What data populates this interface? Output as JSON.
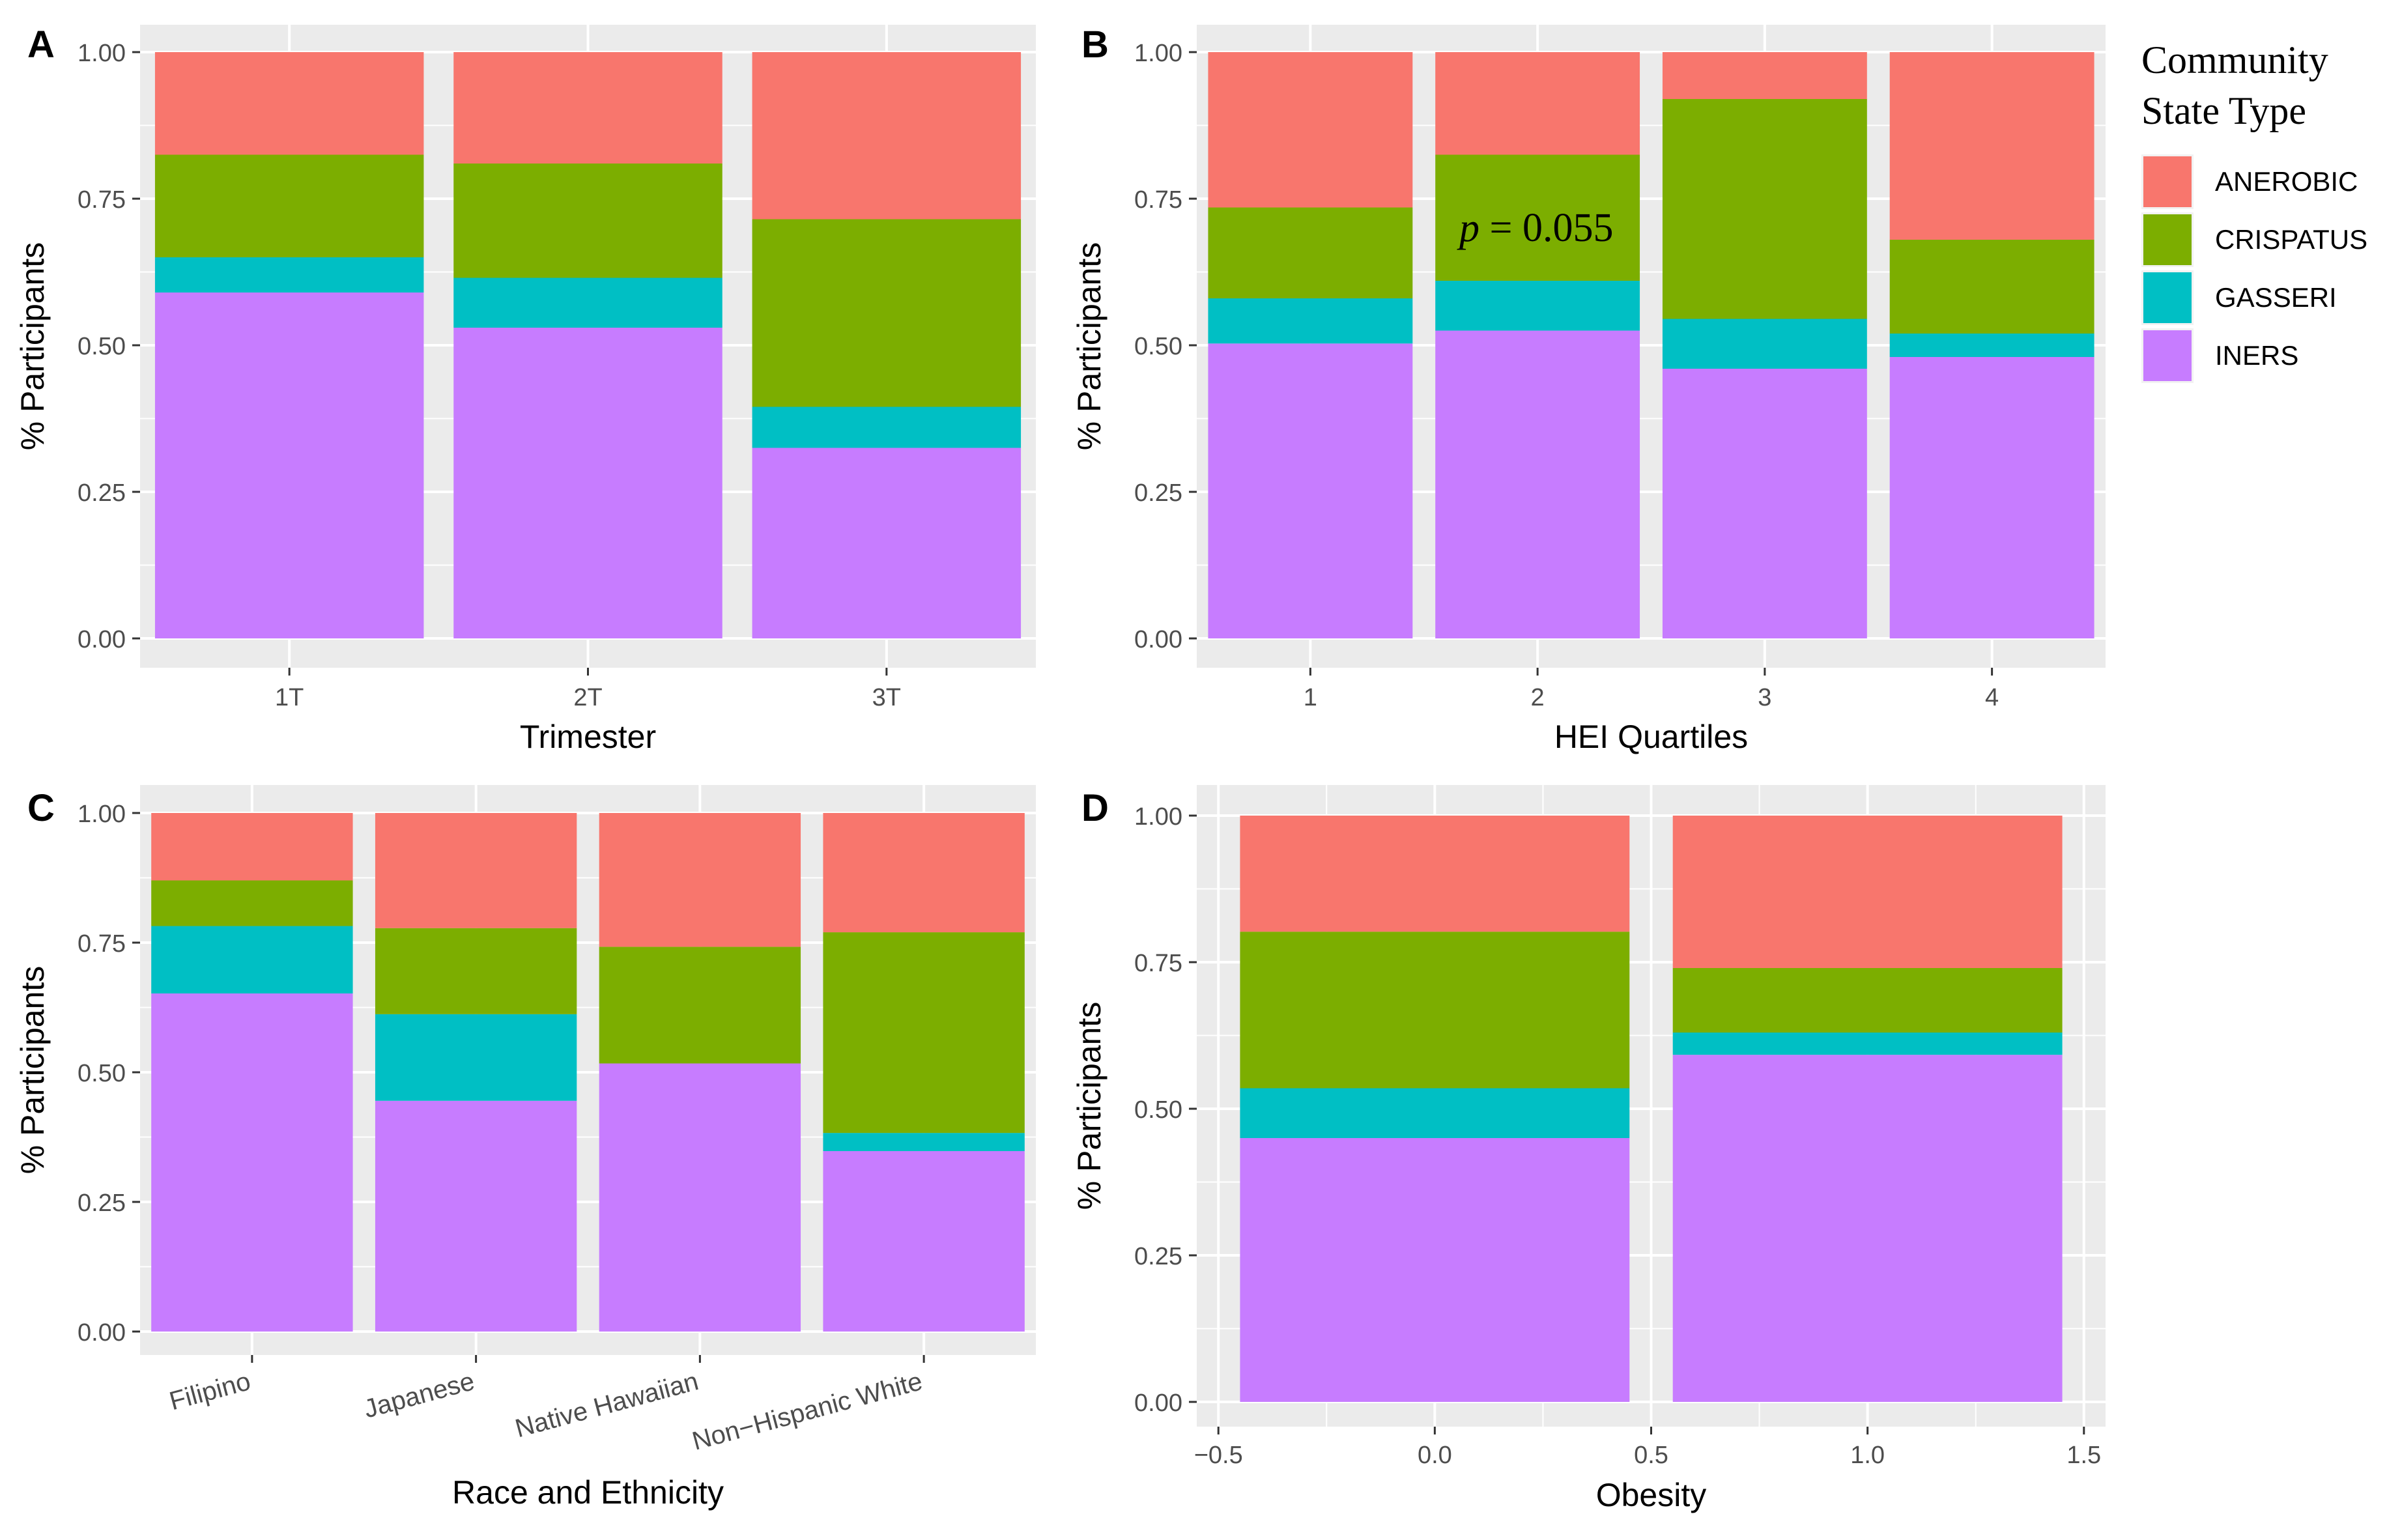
{
  "legend": {
    "title_line1": "Community",
    "title_line2": "State Type",
    "entries": [
      {
        "name": "ANEROBIC",
        "color": "#F8766D"
      },
      {
        "name": "CRISPATUS",
        "color": "#7CAE00"
      },
      {
        "name": "GASSERI",
        "color": "#00BFC4"
      },
      {
        "name": "INERS",
        "color": "#C77CFF"
      }
    ]
  },
  "colors": {
    "panel_bg": "#EBEBEB",
    "grid": "#FFFFFF",
    "axis_text": "#4D4D4D",
    "label_text": "#000000"
  },
  "chart_data": [
    {
      "panel": "A",
      "type": "bar",
      "stacked": true,
      "xlabel": "Trimester",
      "ylabel": "% Participants",
      "ylim": [
        0,
        1
      ],
      "yticks": [
        "0.00",
        "0.25",
        "0.50",
        "0.75",
        "1.00"
      ],
      "categories": [
        "1T",
        "2T",
        "3T"
      ],
      "series": [
        {
          "name": "INERS",
          "values": [
            0.59,
            0.53,
            0.325
          ]
        },
        {
          "name": "GASSERI",
          "values": [
            0.06,
            0.085,
            0.07
          ]
        },
        {
          "name": "CRISPATUS",
          "values": [
            0.175,
            0.195,
            0.32
          ]
        },
        {
          "name": "ANEROBIC",
          "values": [
            0.175,
            0.19,
            0.285
          ]
        }
      ]
    },
    {
      "panel": "B",
      "type": "bar",
      "stacked": true,
      "xlabel": "HEI Quartiles",
      "ylabel": "% Participants",
      "ylim": [
        0,
        1
      ],
      "yticks": [
        "0.00",
        "0.25",
        "0.50",
        "0.75",
        "1.00"
      ],
      "categories": [
        "1",
        "2",
        "3",
        "4"
      ],
      "annotation": {
        "italic": "p",
        "rest": " = 0.055"
      },
      "series": [
        {
          "name": "INERS",
          "values": [
            0.503,
            0.525,
            0.46,
            0.48
          ]
        },
        {
          "name": "GASSERI",
          "values": [
            0.077,
            0.085,
            0.085,
            0.04
          ]
        },
        {
          "name": "CRISPATUS",
          "values": [
            0.155,
            0.215,
            0.375,
            0.16
          ]
        },
        {
          "name": "ANEROBIC",
          "values": [
            0.265,
            0.175,
            0.08,
            0.32
          ]
        }
      ]
    },
    {
      "panel": "C",
      "type": "bar",
      "stacked": true,
      "xlabel": "Race and Ethnicity",
      "ylabel": "% Participants",
      "ylim": [
        0,
        1
      ],
      "yticks": [
        "0.00",
        "0.25",
        "0.50",
        "0.75",
        "1.00"
      ],
      "categories": [
        "Filipino",
        "Japanese",
        "Native Hawaiian",
        "Non−Hispanic White"
      ],
      "series": [
        {
          "name": "INERS",
          "values": [
            0.652,
            0.445,
            0.517,
            0.348
          ]
        },
        {
          "name": "GASSERI",
          "values": [
            0.13,
            0.167,
            0.0,
            0.035
          ]
        },
        {
          "name": "CRISPATUS",
          "values": [
            0.088,
            0.166,
            0.225,
            0.387
          ]
        },
        {
          "name": "ANEROBIC",
          "values": [
            0.13,
            0.222,
            0.258,
            0.23
          ]
        }
      ]
    },
    {
      "panel": "D",
      "type": "bar",
      "stacked": true,
      "xlabel": "Obesity",
      "ylabel": "% Participants",
      "ylim": [
        0,
        1
      ],
      "xlim": [
        -0.55,
        1.55
      ],
      "xticks": [
        "−0.5",
        "0.0",
        "0.5",
        "1.0",
        "1.5"
      ],
      "yticks": [
        "0.00",
        "0.25",
        "0.50",
        "0.75",
        "1.00"
      ],
      "x": [
        0,
        1
      ],
      "series": [
        {
          "name": "INERS",
          "values": [
            0.45,
            0.592
          ]
        },
        {
          "name": "GASSERI",
          "values": [
            0.085,
            0.038
          ]
        },
        {
          "name": "CRISPATUS",
          "values": [
            0.267,
            0.11
          ]
        },
        {
          "name": "ANEROBIC",
          "values": [
            0.198,
            0.26
          ]
        }
      ]
    }
  ]
}
